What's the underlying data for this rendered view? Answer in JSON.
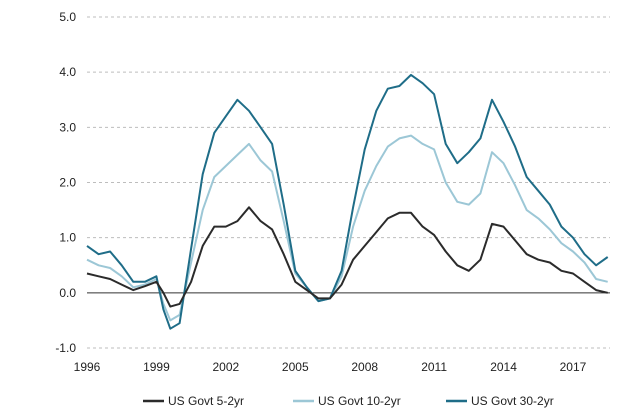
{
  "chart_data": {
    "type": "line",
    "title": "",
    "xlabel": "",
    "ylabel": "",
    "xlim": [
      1996.0,
      2018.6
    ],
    "ylim": [
      -1.0,
      5.0
    ],
    "x_ticks": [
      "1996",
      "1999",
      "2002",
      "2005",
      "2008",
      "2011",
      "2014",
      "2017"
    ],
    "y_ticks": [
      "-1.0",
      "0.0",
      "1.0",
      "2.0",
      "3.0",
      "4.0",
      "5.0"
    ],
    "grid": "horizontal-dashed",
    "legend_position": "bottom",
    "x": [
      1996.0,
      1996.5,
      1997.0,
      1997.5,
      1998.0,
      1998.5,
      1999.0,
      1999.3,
      1999.6,
      2000.0,
      2000.5,
      2001.0,
      2001.5,
      2002.0,
      2002.5,
      2003.0,
      2003.5,
      2004.0,
      2004.5,
      2005.0,
      2005.5,
      2006.0,
      2006.5,
      2007.0,
      2007.5,
      2008.0,
      2008.5,
      2009.0,
      2009.5,
      2010.0,
      2010.5,
      2011.0,
      2011.5,
      2012.0,
      2012.5,
      2013.0,
      2013.5,
      2014.0,
      2014.5,
      2015.0,
      2015.5,
      2016.0,
      2016.5,
      2017.0,
      2017.5,
      2018.0,
      2018.5
    ],
    "series": [
      {
        "name": "US Govt 5-2yr",
        "color": "#2b2b2b",
        "values": [
          0.35,
          0.3,
          0.25,
          0.15,
          0.05,
          0.12,
          0.2,
          0.0,
          -0.25,
          -0.2,
          0.2,
          0.85,
          1.2,
          1.2,
          1.3,
          1.55,
          1.3,
          1.15,
          0.7,
          0.2,
          0.05,
          -0.1,
          -0.1,
          0.15,
          0.6,
          0.85,
          1.1,
          1.35,
          1.45,
          1.45,
          1.2,
          1.05,
          0.75,
          0.5,
          0.4,
          0.6,
          1.25,
          1.2,
          0.95,
          0.7,
          0.6,
          0.55,
          0.4,
          0.35,
          0.2,
          0.05,
          0.0
        ]
      },
      {
        "name": "US Govt 10-2yr",
        "color": "#9cc7d6",
        "values": [
          0.6,
          0.5,
          0.45,
          0.3,
          0.1,
          0.15,
          0.25,
          -0.2,
          -0.5,
          -0.4,
          0.55,
          1.5,
          2.1,
          2.3,
          2.5,
          2.7,
          2.4,
          2.2,
          1.3,
          0.35,
          0.1,
          -0.15,
          -0.1,
          0.3,
          1.2,
          1.85,
          2.3,
          2.65,
          2.8,
          2.85,
          2.7,
          2.6,
          2.0,
          1.65,
          1.6,
          1.8,
          2.55,
          2.35,
          1.95,
          1.5,
          1.35,
          1.15,
          0.9,
          0.75,
          0.55,
          0.25,
          0.2
        ]
      },
      {
        "name": "US Govt 30-2yr",
        "color": "#1f6d88",
        "values": [
          0.85,
          0.7,
          0.75,
          0.5,
          0.2,
          0.2,
          0.3,
          -0.3,
          -0.65,
          -0.55,
          0.8,
          2.15,
          2.9,
          3.2,
          3.5,
          3.3,
          3.0,
          2.7,
          1.6,
          0.4,
          0.1,
          -0.15,
          -0.1,
          0.4,
          1.55,
          2.6,
          3.3,
          3.7,
          3.75,
          3.95,
          3.8,
          3.6,
          2.7,
          2.35,
          2.55,
          2.8,
          3.5,
          3.1,
          2.65,
          2.1,
          1.85,
          1.6,
          1.2,
          1.0,
          0.7,
          0.5,
          0.65
        ]
      }
    ]
  }
}
